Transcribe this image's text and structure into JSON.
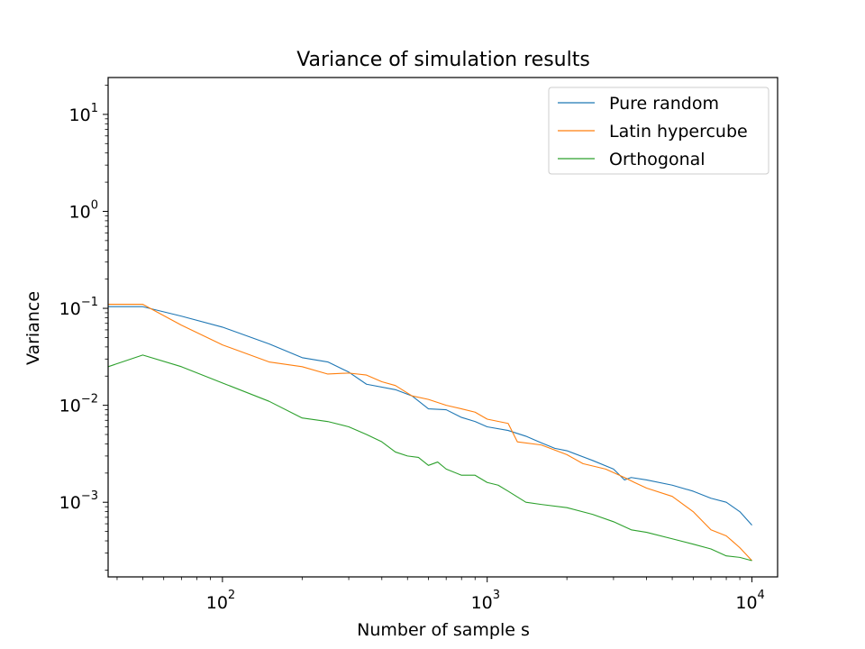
{
  "chart_data": {
    "type": "line",
    "title": "Variance of simulation results",
    "xlabel": "Number of sample s",
    "ylabel": "Variance",
    "xscale": "log",
    "yscale": "log",
    "xlim": [
      37,
      12500
    ],
    "ylim": [
      0.00017,
      24
    ],
    "grid": false,
    "legend_position": "top-right",
    "x_ticks": [
      {
        "base": "10",
        "exp": "2",
        "value": 100
      },
      {
        "base": "10",
        "exp": "3",
        "value": 1000
      },
      {
        "base": "10",
        "exp": "4",
        "value": 10000
      }
    ],
    "y_ticks": [
      {
        "base": "10",
        "exp": "1",
        "value": 10
      },
      {
        "base": "10",
        "exp": "0",
        "value": 1
      },
      {
        "base": "10",
        "exp": "−1",
        "value": 0.1
      },
      {
        "base": "10",
        "exp": "−2",
        "value": 0.01
      },
      {
        "base": "10",
        "exp": "−3",
        "value": 0.001
      }
    ],
    "series": [
      {
        "name": "Pure random",
        "color": "#1f77b4",
        "points": [
          [
            37,
            0.104
          ],
          [
            50,
            0.104
          ],
          [
            70,
            0.083
          ],
          [
            100,
            0.064
          ],
          [
            150,
            0.043
          ],
          [
            200,
            0.031
          ],
          [
            250,
            0.028
          ],
          [
            300,
            0.022
          ],
          [
            350,
            0.0165
          ],
          [
            450,
            0.0145
          ],
          [
            520,
            0.0125
          ],
          [
            600,
            0.0092
          ],
          [
            700,
            0.009
          ],
          [
            800,
            0.0075
          ],
          [
            900,
            0.0068
          ],
          [
            1000,
            0.006
          ],
          [
            1200,
            0.0055
          ],
          [
            1400,
            0.0048
          ],
          [
            1600,
            0.0041
          ],
          [
            1800,
            0.0036
          ],
          [
            2000,
            0.0034
          ],
          [
            2500,
            0.0027
          ],
          [
            3000,
            0.0022
          ],
          [
            3300,
            0.0017
          ],
          [
            3500,
            0.0018
          ],
          [
            4000,
            0.0017
          ],
          [
            5000,
            0.0015
          ],
          [
            6000,
            0.0013
          ],
          [
            7000,
            0.0011
          ],
          [
            8000,
            0.001
          ],
          [
            9000,
            0.0008
          ],
          [
            10000,
            0.00058
          ]
        ]
      },
      {
        "name": "Latin hypercube",
        "color": "#ff7f0e",
        "points": [
          [
            37,
            0.11
          ],
          [
            50,
            0.11
          ],
          [
            70,
            0.067
          ],
          [
            100,
            0.042
          ],
          [
            150,
            0.028
          ],
          [
            200,
            0.025
          ],
          [
            250,
            0.021
          ],
          [
            300,
            0.0215
          ],
          [
            350,
            0.0205
          ],
          [
            400,
            0.0175
          ],
          [
            450,
            0.016
          ],
          [
            520,
            0.0125
          ],
          [
            600,
            0.0115
          ],
          [
            700,
            0.01
          ],
          [
            800,
            0.0092
          ],
          [
            900,
            0.0085
          ],
          [
            1000,
            0.0072
          ],
          [
            1200,
            0.0065
          ],
          [
            1300,
            0.0042
          ],
          [
            1600,
            0.0039
          ],
          [
            2000,
            0.0031
          ],
          [
            2300,
            0.0025
          ],
          [
            2800,
            0.0022
          ],
          [
            3300,
            0.0018
          ],
          [
            3600,
            0.0016
          ],
          [
            4000,
            0.0014
          ],
          [
            5000,
            0.00115
          ],
          [
            6000,
            0.0008
          ],
          [
            7000,
            0.00052
          ],
          [
            8000,
            0.00045
          ],
          [
            8500,
            0.00039
          ],
          [
            9000,
            0.00034
          ],
          [
            10000,
            0.00025
          ]
        ]
      },
      {
        "name": "Orthogonal",
        "color": "#2ca02c",
        "points": [
          [
            37,
            0.025
          ],
          [
            50,
            0.033
          ],
          [
            70,
            0.025
          ],
          [
            100,
            0.017
          ],
          [
            150,
            0.011
          ],
          [
            200,
            0.0074
          ],
          [
            250,
            0.0068
          ],
          [
            300,
            0.006
          ],
          [
            350,
            0.005
          ],
          [
            400,
            0.0042
          ],
          [
            450,
            0.0033
          ],
          [
            500,
            0.003
          ],
          [
            550,
            0.0029
          ],
          [
            600,
            0.0024
          ],
          [
            650,
            0.0026
          ],
          [
            700,
            0.0022
          ],
          [
            800,
            0.0019
          ],
          [
            900,
            0.0019
          ],
          [
            1000,
            0.0016
          ],
          [
            1100,
            0.0015
          ],
          [
            1200,
            0.0013
          ],
          [
            1400,
            0.001
          ],
          [
            1600,
            0.00095
          ],
          [
            2000,
            0.00088
          ],
          [
            2500,
            0.00075
          ],
          [
            3000,
            0.00063
          ],
          [
            3500,
            0.00052
          ],
          [
            4000,
            0.00049
          ],
          [
            5000,
            0.00042
          ],
          [
            6000,
            0.00037
          ],
          [
            7000,
            0.00033
          ],
          [
            8000,
            0.00028
          ],
          [
            9000,
            0.00027
          ],
          [
            10000,
            0.00025
          ]
        ]
      }
    ]
  }
}
